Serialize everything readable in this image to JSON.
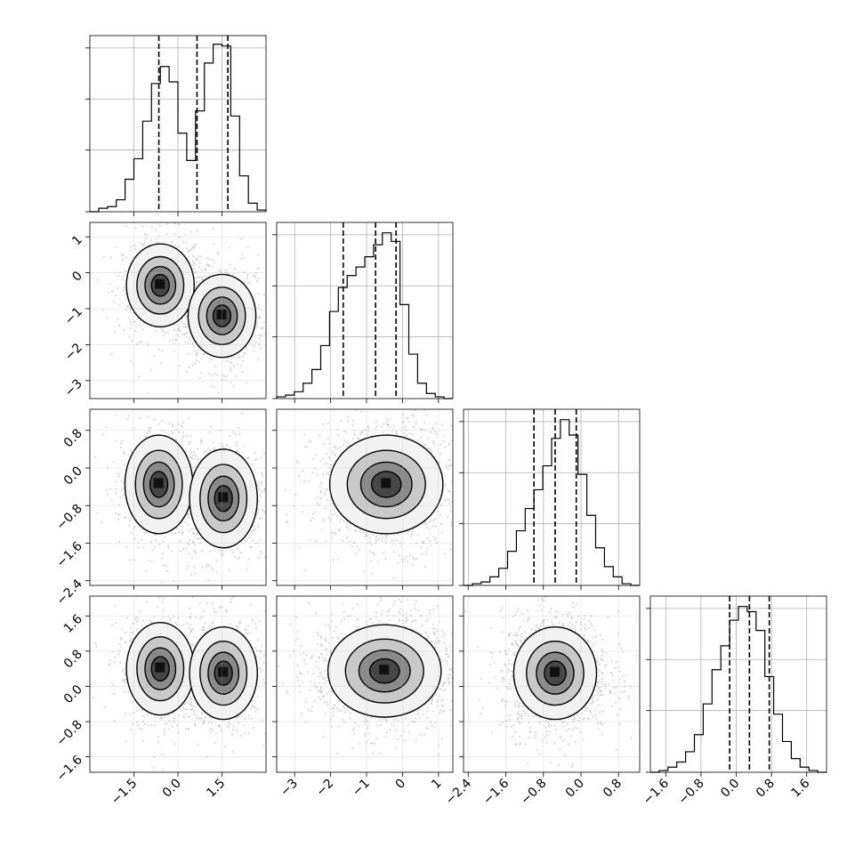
{
  "chart_data": {
    "type": "corner",
    "grid": true,
    "n_params": 4,
    "ranges": [
      [
        -3.0,
        3.0
      ],
      [
        -3.5,
        1.4
      ],
      [
        -2.5,
        1.25
      ],
      [
        -1.95,
        2.05
      ]
    ],
    "ticks": [
      {
        "values": [
          -1.5,
          0.0,
          1.5
        ],
        "labels": [
          "−1.5",
          "0.0",
          "1.5"
        ]
      },
      {
        "values": [
          -3,
          -2,
          -1,
          0,
          1
        ],
        "labels": [
          "−3",
          "−2",
          "−1",
          "0",
          "1"
        ]
      },
      {
        "values": [
          -2.4,
          -1.6,
          -0.8,
          0.0,
          0.8
        ],
        "labels": [
          "−2.4",
          "−1.6",
          "−0.8",
          "0.0",
          "0.8"
        ]
      },
      {
        "values": [
          -1.6,
          -0.8,
          0.0,
          0.8,
          1.6
        ],
        "labels": [
          "−1.6",
          "−0.8",
          "0.0",
          "0.8",
          "1.6"
        ]
      }
    ],
    "histograms": [
      {
        "param": 0,
        "bins": 20,
        "range": [
          -3.0,
          3.0
        ],
        "counts": [
          0.0,
          0.02,
          0.03,
          0.07,
          0.19,
          0.31,
          0.53,
          0.75,
          0.85,
          0.76,
          0.46,
          0.3,
          0.59,
          0.87,
          0.98,
          0.97,
          0.56,
          0.21,
          0.05,
          0.01
        ],
        "quantiles": [
          -0.65,
          0.65,
          1.7
        ]
      },
      {
        "param": 1,
        "bins": 20,
        "range": [
          -3.5,
          1.4
        ],
        "counts": [
          0.01,
          0.02,
          0.04,
          0.09,
          0.17,
          0.31,
          0.51,
          0.65,
          0.72,
          0.77,
          0.83,
          0.9,
          0.97,
          0.92,
          0.55,
          0.26,
          0.09,
          0.03,
          0.01,
          0.0
        ],
        "quantiles": [
          -1.65,
          -0.75,
          -0.18
        ]
      },
      {
        "param": 2,
        "bins": 20,
        "range": [
          -2.5,
          1.25
        ],
        "counts": [
          0.0,
          0.01,
          0.02,
          0.05,
          0.1,
          0.2,
          0.32,
          0.45,
          0.56,
          0.7,
          0.86,
          0.97,
          0.88,
          0.65,
          0.41,
          0.22,
          0.11,
          0.05,
          0.01,
          0.0
        ],
        "quantiles": [
          -1.0,
          -0.55,
          -0.1
        ]
      },
      {
        "param": 3,
        "bins": 20,
        "range": [
          -1.95,
          2.05
        ],
        "counts": [
          0.0,
          0.01,
          0.03,
          0.06,
          0.12,
          0.22,
          0.4,
          0.6,
          0.74,
          0.89,
          0.97,
          0.94,
          0.83,
          0.56,
          0.34,
          0.18,
          0.08,
          0.03,
          0.01,
          0.0
        ],
        "quantiles": [
          -0.15,
          0.3,
          0.75
        ]
      }
    ],
    "pairs": [
      {
        "x_param": 0,
        "y_param": 1,
        "modes": [
          [
            -0.6,
            -0.35
          ],
          [
            1.5,
            -1.2
          ]
        ]
      },
      {
        "x_param": 0,
        "y_param": 2,
        "modes": [
          [
            -0.65,
            -0.35
          ],
          [
            1.55,
            -0.65
          ]
        ]
      },
      {
        "x_param": 1,
        "y_param": 2,
        "modes": [
          [
            -0.45,
            -0.35
          ]
        ]
      },
      {
        "x_param": 0,
        "y_param": 3,
        "modes": [
          [
            -0.6,
            0.4
          ],
          [
            1.55,
            0.3
          ]
        ]
      },
      {
        "x_param": 1,
        "y_param": 3,
        "modes": [
          [
            -0.5,
            0.35
          ]
        ]
      },
      {
        "x_param": 2,
        "y_param": 3,
        "modes": [
          [
            -0.55,
            0.3
          ]
        ]
      }
    ]
  }
}
